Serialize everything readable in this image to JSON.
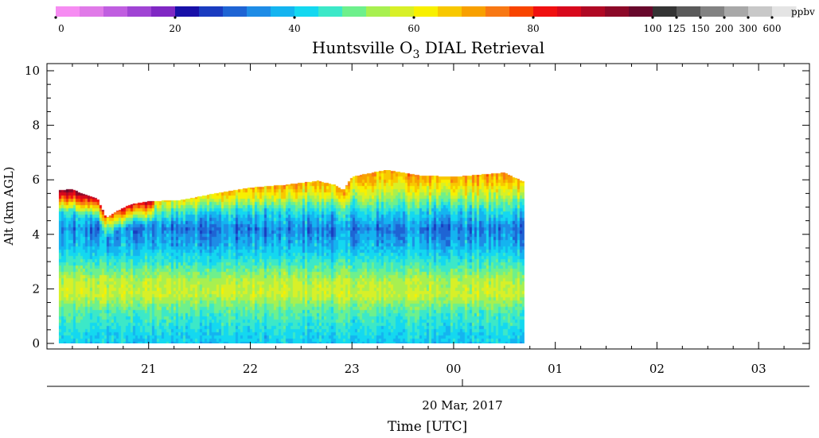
{
  "colorbar": {
    "colors": [
      "#f68cf2",
      "#e07ae8",
      "#c05ee0",
      "#a044d4",
      "#8028c4",
      "#1810a8",
      "#1a3cc0",
      "#1e64d4",
      "#1e8ce6",
      "#14b4f0",
      "#14d8f0",
      "#3ce8c8",
      "#6ef08c",
      "#a8f050",
      "#d8f028",
      "#f8f000",
      "#f8c800",
      "#f8a000",
      "#f87814",
      "#f84400",
      "#f01010",
      "#d8081c",
      "#b00824",
      "#8c0828",
      "#68082c",
      "#343434",
      "#5a5a5a",
      "#828282",
      "#a8a8a8",
      "#c8c8c8",
      "#e4e4e4"
    ],
    "tick_labels": [
      "0",
      "20",
      "40",
      "60",
      "80",
      "100",
      "125",
      "150",
      "200",
      "300",
      "600"
    ],
    "unit": "ppbv"
  },
  "chart_data": {
    "type": "heatmap",
    "title": "Huntsville O3 DIAL Retrieval",
    "xlabel": "Time [UTC]",
    "ylabel": "Alt (km AGL)",
    "date_label": "20 Mar, 2017",
    "x_range": [
      "2017-03-20T20:00Z",
      "2017-03-21T03:30Z"
    ],
    "x_ticks": [
      "21",
      "22",
      "23",
      "00",
      "01",
      "02",
      "03"
    ],
    "ylim": [
      0,
      10.3
    ],
    "y_ticks": [
      "0",
      "2",
      "4",
      "6",
      "8",
      "10"
    ],
    "data_extent": [
      "2017-03-20T20:07Z",
      "2017-03-21T00:42Z"
    ],
    "top_altitude_km": [
      {
        "time": "20:07",
        "km": 5.6
      },
      {
        "time": "20:15",
        "km": 5.65
      },
      {
        "time": "20:20",
        "km": 5.5
      },
      {
        "time": "20:30",
        "km": 5.3
      },
      {
        "time": "20:35",
        "km": 4.6
      },
      {
        "time": "20:40",
        "km": 4.8
      },
      {
        "time": "20:50",
        "km": 5.1
      },
      {
        "time": "21:00",
        "km": 5.2
      },
      {
        "time": "21:20",
        "km": 5.25
      },
      {
        "time": "21:40",
        "km": 5.5
      },
      {
        "time": "22:00",
        "km": 5.7
      },
      {
        "time": "22:20",
        "km": 5.8
      },
      {
        "time": "22:40",
        "km": 5.95
      },
      {
        "time": "22:50",
        "km": 5.8
      },
      {
        "time": "22:55",
        "km": 5.6
      },
      {
        "time": "23:00",
        "km": 6.1
      },
      {
        "time": "23:20",
        "km": 6.35
      },
      {
        "time": "23:40",
        "km": 6.15
      },
      {
        "time": "00:00",
        "km": 6.1
      },
      {
        "time": "00:20",
        "km": 6.2
      },
      {
        "time": "00:30",
        "km": 6.25
      },
      {
        "time": "00:42",
        "km": 5.9
      }
    ],
    "vertical_profile_ppbv": [
      {
        "km": 0.0,
        "ppbv": 40
      },
      {
        "km": 0.5,
        "ppbv": 43
      },
      {
        "km": 1.2,
        "ppbv": 48
      },
      {
        "km": 1.8,
        "ppbv": 57
      },
      {
        "km": 2.3,
        "ppbv": 55
      },
      {
        "km": 3.0,
        "ppbv": 45
      },
      {
        "km": 3.6,
        "ppbv": 38
      },
      {
        "km": 4.2,
        "ppbv": 33
      },
      {
        "km": 4.8,
        "ppbv": 42
      },
      {
        "km": 5.4,
        "ppbv": 55
      },
      {
        "km": 6.0,
        "ppbv": 60
      }
    ]
  }
}
